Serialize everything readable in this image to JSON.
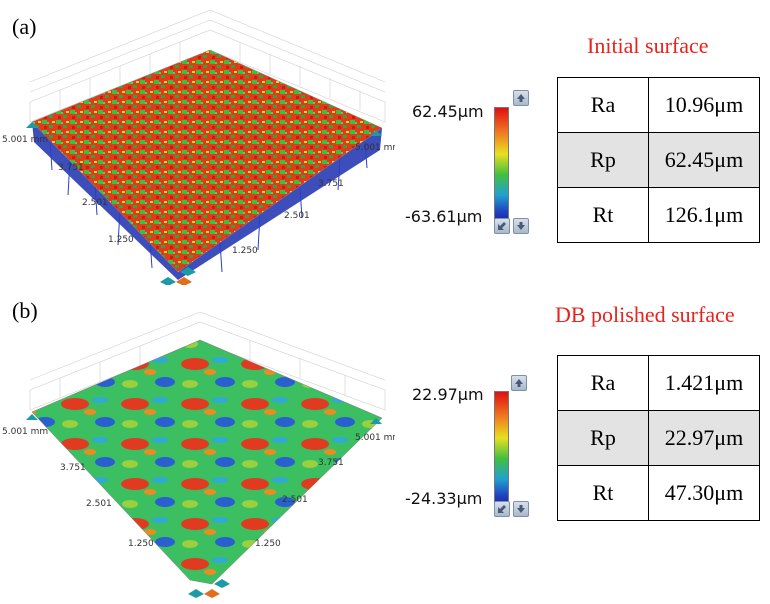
{
  "panels": [
    {
      "label": "(a)",
      "title": "Initial surface",
      "axis_ticks": {
        "left_top": "5.001 mm",
        "right_top": "5.001 mm",
        "left": [
          "3.751",
          "2.501",
          "1.250"
        ],
        "right": [
          "3.751",
          "2.501",
          "1.250"
        ]
      },
      "scale": {
        "max": "62.45μm",
        "min": "-63.61μm"
      },
      "table": [
        {
          "param": "Ra",
          "value": "10.96μm"
        },
        {
          "param": "Rp",
          "value": "62.45μm"
        },
        {
          "param": "Rt",
          "value": "126.1μm"
        }
      ]
    },
    {
      "label": "(b)",
      "title": "DB polished surface",
      "axis_ticks": {
        "left_top": "5.001 mm",
        "right_top": "5.001 mm",
        "left": [
          "3.751",
          "2.501",
          "1.250"
        ],
        "right": [
          "3.751",
          "2.501",
          "1.250"
        ]
      },
      "scale": {
        "max": "22.97μm",
        "min": "-24.33μm"
      },
      "table": [
        {
          "param": "Ra",
          "value": "1.421μm"
        },
        {
          "param": "Rp",
          "value": "22.97μm"
        },
        {
          "param": "Rt",
          "value": "47.30μm"
        }
      ]
    }
  ],
  "colors": {
    "title": "#e8231d",
    "scale_top": "#e01010",
    "scale_bottom": "#101090"
  },
  "icons": [
    "scroll-up-icon",
    "scroll-down-icon",
    "reset-view-icon",
    "rotate-handle-icon"
  ]
}
